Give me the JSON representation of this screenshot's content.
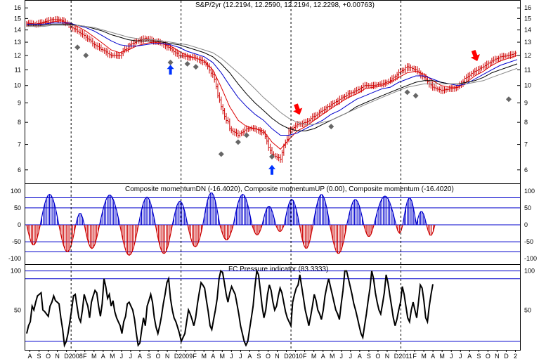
{
  "chart_data": [
    {
      "panel": "price",
      "type": "bar",
      "title": "S&P/2yr (12.2194, 12.2590, 12.2194, 12.2298, +0.00763)",
      "scale": "log",
      "ylim": [
        5.6,
        16.5
      ],
      "yticks": [
        "16",
        "15",
        "14",
        "13",
        "12",
        "11",
        "10",
        "9",
        "8",
        "7",
        "6"
      ],
      "grid": false,
      "colors": {
        "bars": "#cc0000",
        "ma_fast": "#dd0000",
        "ma_mid": "#0000cc",
        "ma_slow": "#000000",
        "ma_long": "#888888",
        "markers": "#666666",
        "buy_arrow": "#0033ff",
        "sell_arrow": "#ff0000"
      },
      "closes": [
        14.6,
        14.5,
        14.7,
        14.9,
        14.9,
        14.4,
        13.9,
        13.4,
        12.8,
        12.4,
        12.0,
        12.0,
        12.7,
        13.1,
        13.3,
        13.1,
        12.9,
        12.5,
        12.0,
        11.9,
        11.8,
        11.5,
        10.7,
        8.8,
        7.7,
        7.4,
        7.7,
        7.7,
        7.5,
        6.6,
        6.4,
        7.6,
        7.9,
        8.0,
        8.3,
        8.6,
        8.9,
        9.2,
        9.5,
        9.7,
        10.0,
        10.0,
        10.1,
        10.3,
        10.8,
        11.2,
        11.0,
        10.5,
        9.9,
        9.7,
        9.8,
        9.9,
        10.5,
        10.9,
        11.2,
        11.6,
        11.9,
        12.0,
        12.2
      ],
      "moving_averages": [
        {
          "name": "fast",
          "values": [
            14.6,
            14.5,
            14.6,
            14.7,
            14.8,
            14.6,
            14.3,
            13.9,
            13.4,
            12.9,
            12.4,
            12.2,
            12.4,
            12.7,
            12.9,
            13.0,
            12.9,
            12.7,
            12.3,
            12.0,
            11.8,
            11.6,
            11.0,
            9.9,
            8.8,
            8.1,
            7.8,
            7.7,
            7.6,
            7.1,
            6.8,
            7.2,
            7.6,
            7.8,
            8.1,
            8.4,
            8.7,
            9.0,
            9.3,
            9.5,
            9.8,
            9.9,
            10.0,
            10.2,
            10.5,
            10.8,
            10.9,
            10.7,
            10.3,
            10.0,
            9.9,
            9.9,
            10.2,
            10.6,
            10.9,
            11.3,
            11.6,
            11.8,
            12.0
          ]
        },
        {
          "name": "mid",
          "values": [
            14.5,
            14.5,
            14.5,
            14.6,
            14.6,
            14.6,
            14.4,
            14.2,
            13.9,
            13.5,
            13.1,
            12.8,
            12.7,
            12.7,
            12.8,
            12.9,
            12.9,
            12.8,
            12.6,
            12.3,
            12.1,
            11.9,
            11.5,
            10.8,
            10.0,
            9.3,
            8.8,
            8.4,
            8.1,
            7.7,
            7.4,
            7.4,
            7.5,
            7.7,
            7.9,
            8.1,
            8.4,
            8.6,
            8.9,
            9.2,
            9.4,
            9.6,
            9.8,
            9.9,
            10.2,
            10.4,
            10.6,
            10.6,
            10.4,
            10.2,
            10.1,
            10.0,
            10.1,
            10.4,
            10.7,
            11.0,
            11.3,
            11.5,
            11.7
          ]
        },
        {
          "name": "slow",
          "values": [
            14.4,
            14.4,
            14.4,
            14.5,
            14.5,
            14.5,
            14.4,
            14.3,
            14.1,
            13.9,
            13.6,
            13.4,
            13.2,
            13.1,
            13.1,
            13.1,
            13.0,
            12.9,
            12.8,
            12.6,
            12.4,
            12.2,
            11.9,
            11.4,
            10.8,
            10.1,
            9.5,
            9.0,
            8.6,
            8.2,
            7.9,
            7.7,
            7.6,
            7.6,
            7.7,
            7.9,
            8.1,
            8.3,
            8.5,
            8.8,
            9.0,
            9.2,
            9.4,
            9.6,
            9.8,
            10.0,
            10.2,
            10.3,
            10.3,
            10.2,
            10.1,
            10.1,
            10.2,
            10.3,
            10.5,
            10.8,
            11.0,
            11.2,
            11.4
          ]
        },
        {
          "name": "long",
          "values": [
            14.3,
            14.3,
            14.3,
            14.4,
            14.4,
            14.4,
            14.4,
            14.3,
            14.2,
            14.0,
            13.8,
            13.6,
            13.4,
            13.3,
            13.2,
            13.2,
            13.1,
            13.0,
            12.9,
            12.8,
            12.6,
            12.4,
            12.2,
            11.8,
            11.3,
            10.8,
            10.3,
            9.8,
            9.3,
            8.9,
            8.5,
            8.2,
            8.0,
            7.9,
            7.9,
            8.0,
            8.1,
            8.3,
            8.5,
            8.7,
            8.9,
            9.1,
            9.3,
            9.5,
            9.7,
            9.9,
            10.0,
            10.1,
            10.1,
            10.1,
            10.1,
            10.1,
            10.1,
            10.2,
            10.3,
            10.5,
            10.7,
            10.9,
            11.1
          ]
        }
      ],
      "markers": [
        [
          6,
          12.6
        ],
        [
          7,
          12.0
        ],
        [
          17,
          11.5
        ],
        [
          19,
          11.4
        ],
        [
          20,
          11.2
        ],
        [
          23,
          6.6
        ],
        [
          25,
          7.1
        ],
        [
          26,
          7.4
        ],
        [
          29,
          6.5
        ],
        [
          36,
          7.8
        ],
        [
          45,
          9.6
        ],
        [
          46,
          9.4
        ],
        [
          57,
          9.2
        ]
      ],
      "buy_arrows": [
        [
          17,
          11.0
        ],
        [
          29,
          6.0
        ]
      ],
      "sell_arrows": [
        [
          32,
          8.6
        ],
        [
          53,
          11.9
        ]
      ]
    },
    {
      "panel": "momentum",
      "type": "bar",
      "title": "Composite momentumDN (-16.4020), Composite momentumUP (0.00), Composite momentum (-16.4020)",
      "ylim": [
        -110,
        110
      ],
      "yticks": [
        "100",
        "50",
        "0",
        "-50",
        "-100"
      ],
      "reference_lines": [
        80,
        50,
        0,
        -50,
        -80
      ],
      "colors": {
        "positive": "#0000cc",
        "negative": "#cc0000",
        "reference": "#0000cc"
      },
      "lobes": [
        [
          -60,
          8
        ],
        [
          90,
          11
        ],
        [
          -80,
          10
        ],
        [
          35,
          5
        ],
        [
          -70,
          9
        ],
        [
          88,
          12
        ],
        [
          -90,
          11
        ],
        [
          82,
          10
        ],
        [
          -85,
          10
        ],
        [
          70,
          9
        ],
        [
          -65,
          9
        ],
        [
          95,
          10
        ],
        [
          -45,
          8
        ],
        [
          90,
          11
        ],
        [
          -30,
          6
        ],
        [
          55,
          8
        ],
        [
          -20,
          5
        ],
        [
          75,
          9
        ],
        [
          -70,
          8
        ],
        [
          90,
          10
        ],
        [
          -85,
          10
        ],
        [
          75,
          10
        ],
        [
          -35,
          6
        ],
        [
          85,
          13
        ],
        [
          -25,
          4
        ],
        [
          80,
          8
        ],
        [
          40,
          6
        ],
        [
          -32,
          5
        ]
      ]
    },
    {
      "panel": "pressure",
      "type": "line",
      "title": "FC Pressure indicator (83.3333)",
      "ylim": [
        0,
        105
      ],
      "yticks": [
        "100",
        "50"
      ],
      "reference_lines": [
        100,
        90,
        10
      ],
      "colors": {
        "line": "#000000",
        "reference": "#0000cc"
      },
      "values": [
        20,
        30,
        35,
        55,
        50,
        60,
        68,
        70,
        72,
        50,
        48,
        45,
        42,
        55,
        60,
        68,
        62,
        60,
        58,
        40,
        25,
        5,
        10,
        20,
        35,
        50,
        68,
        70,
        55,
        40,
        35,
        50,
        70,
        62,
        55,
        40,
        60,
        68,
        75,
        72,
        55,
        42,
        58,
        90,
        80,
        65,
        70,
        55,
        62,
        48,
        40,
        35,
        30,
        20,
        35,
        42,
        58,
        60,
        55,
        50,
        38,
        20,
        5,
        8,
        25,
        40,
        30,
        55,
        62,
        70,
        60,
        40,
        28,
        20,
        30,
        42,
        58,
        70,
        85,
        90,
        65,
        50,
        40,
        35,
        28,
        20,
        10,
        15,
        20,
        35,
        50,
        45,
        38,
        30,
        40,
        58,
        72,
        85,
        82,
        78,
        62,
        48,
        30,
        25,
        38,
        50,
        65,
        90,
        100,
        98,
        85,
        70,
        60,
        72,
        80,
        75,
        70,
        58,
        45,
        30,
        20,
        10,
        5,
        10,
        25,
        40,
        55,
        80,
        100,
        95,
        75,
        55,
        40,
        50,
        70,
        82,
        75,
        60,
        50,
        55,
        68,
        78,
        72,
        60,
        48,
        40,
        35,
        30,
        60,
        70,
        78,
        82,
        95,
        80,
        65,
        50,
        40,
        30,
        42,
        55,
        70,
        62,
        50,
        45,
        38,
        50,
        68,
        80,
        90,
        80,
        70,
        60,
        50,
        45,
        38,
        58,
        75,
        100,
        100,
        90,
        80,
        70,
        58,
        50,
        40,
        30,
        20,
        15,
        30,
        45,
        62,
        78,
        100,
        90,
        72,
        60,
        50,
        45,
        58,
        72,
        95,
        85,
        70,
        55,
        40,
        30,
        38,
        50,
        60,
        80,
        70,
        55,
        40,
        35,
        50,
        60,
        50,
        40,
        60,
        82,
        78,
        62,
        40,
        35,
        55,
        70,
        83
      ]
    }
  ],
  "x_axis": {
    "labels": [
      "A",
      "S",
      "O",
      "N",
      "D",
      "2008",
      "F",
      "M",
      "A",
      "M",
      "J",
      "J",
      "A",
      "S",
      "O",
      "N",
      "D",
      "2009",
      "F",
      "M",
      "A",
      "M",
      "J",
      "J",
      "A",
      "S",
      "O",
      "N",
      "D",
      "2010",
      "F",
      "M",
      "A",
      "M",
      "J",
      "J",
      "A",
      "S",
      "O",
      "N",
      "D",
      "2011",
      "F",
      "M",
      "A",
      "M",
      "J",
      "J",
      "A",
      "S",
      "O",
      "N",
      "D",
      "2"
    ],
    "year_boundaries": [
      5,
      17,
      29,
      41
    ]
  }
}
